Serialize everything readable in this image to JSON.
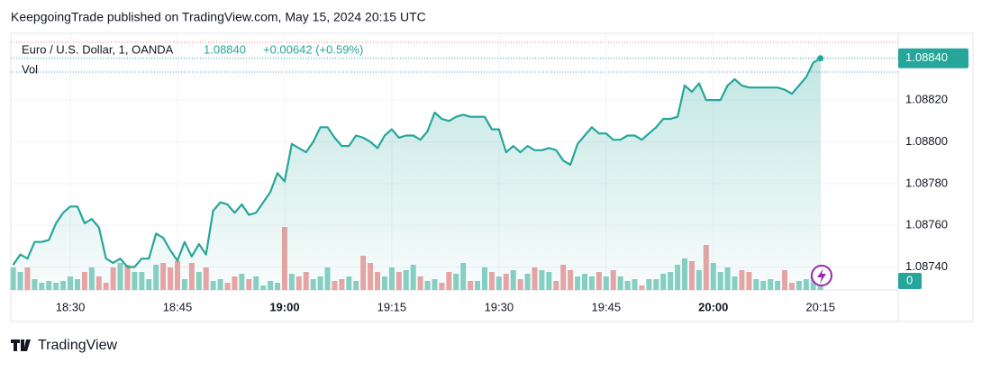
{
  "chart_data": {
    "type": "line",
    "title": "KeepgoingTrade published on TradingView.com, May 15, 2024 20:15 UTC",
    "legend_title": "Euro / U.S. Dollar, 1, OANDA",
    "last_price": {
      "value": 1.0884,
      "label": "1.08840"
    },
    "change": "+0.00642 (+0.59%)",
    "volume_title": "Vol",
    "volume_label": 0,
    "footer": "TradingView",
    "categories": [
      null,
      null,
      null,
      null,
      null,
      null,
      null,
      null,
      "18:30",
      null,
      null,
      null,
      null,
      null,
      null,
      null,
      null,
      null,
      null,
      null,
      null,
      null,
      null,
      "18:45",
      null,
      null,
      null,
      null,
      null,
      null,
      null,
      null,
      null,
      null,
      null,
      null,
      null,
      null,
      "19:00",
      null,
      null,
      null,
      null,
      null,
      null,
      null,
      null,
      null,
      null,
      null,
      null,
      null,
      null,
      "19:15",
      null,
      null,
      null,
      null,
      null,
      null,
      null,
      null,
      null,
      null,
      null,
      null,
      null,
      null,
      "19:30",
      null,
      null,
      null,
      null,
      null,
      null,
      null,
      null,
      null,
      null,
      null,
      null,
      null,
      null,
      "19:45",
      null,
      null,
      null,
      null,
      null,
      null,
      null,
      null,
      null,
      null,
      null,
      null,
      null,
      null,
      "20:00",
      null,
      null,
      null,
      null,
      null,
      null,
      null,
      null,
      null,
      null,
      null,
      null,
      null,
      null,
      "20:15"
    ],
    "series": [
      {
        "color": "#26a69a",
        "values": [
          1.08741,
          1.08746,
          1.08744,
          1.08752,
          1.08752,
          1.08753,
          1.08761,
          1.08766,
          1.08769,
          1.08769,
          1.08761,
          1.08763,
          1.08759,
          1.08744,
          1.08742,
          1.08744,
          1.0874,
          1.0874,
          1.08744,
          1.08744,
          1.08756,
          1.08754,
          1.08748,
          1.08743,
          1.08752,
          1.08745,
          1.08751,
          1.08746,
          1.08767,
          1.08771,
          1.0877,
          1.08766,
          1.0877,
          1.08765,
          1.08766,
          1.08771,
          1.08776,
          1.08785,
          1.08781,
          1.08799,
          1.08797,
          1.08795,
          1.088,
          1.08807,
          1.08807,
          1.08802,
          1.08798,
          1.08798,
          1.08803,
          1.08802,
          1.088,
          1.08797,
          1.08803,
          1.08806,
          1.08802,
          1.08803,
          1.08803,
          1.08801,
          1.08805,
          1.08814,
          1.08811,
          1.0881,
          1.08812,
          1.08813,
          1.08812,
          1.08812,
          1.08812,
          1.08806,
          1.08806,
          1.08795,
          1.08798,
          1.08795,
          1.08798,
          1.08796,
          1.08796,
          1.08797,
          1.08796,
          1.08791,
          1.08789,
          1.08799,
          1.08803,
          1.08807,
          1.08804,
          1.08804,
          1.08801,
          1.08801,
          1.08803,
          1.08803,
          1.08801,
          1.08804,
          1.08807,
          1.08811,
          1.08811,
          1.08812,
          1.08827,
          1.08824,
          1.08828,
          1.0882,
          1.0882,
          1.0882,
          1.08827,
          1.0883,
          1.08827,
          1.08826,
          1.08826,
          1.08826,
          1.08826,
          1.08826,
          1.08825,
          1.08823,
          1.08827,
          1.08831,
          1.08838,
          1.0884
        ]
      }
    ],
    "volume": {
      "up_color": "#89d0c4",
      "down_color": "#eda4a4",
      "values": [
        25,
        20,
        25,
        12,
        8,
        10,
        8,
        10,
        15,
        12,
        20,
        25,
        15,
        8,
        25,
        30,
        28,
        20,
        20,
        12,
        28,
        30,
        25,
        32,
        12,
        30,
        20,
        25,
        10,
        12,
        8,
        15,
        18,
        12,
        15,
        5,
        10,
        8,
        70,
        18,
        15,
        20,
        12,
        15,
        25,
        10,
        12,
        15,
        10,
        38,
        30,
        20,
        15,
        25,
        20,
        22,
        28,
        15,
        10,
        12,
        8,
        20,
        18,
        30,
        10,
        10,
        25,
        20,
        15,
        18,
        22,
        12,
        18,
        25,
        22,
        20,
        10,
        28,
        22,
        15,
        18,
        15,
        20,
        15,
        22,
        15,
        10,
        12,
        5,
        12,
        12,
        18,
        20,
        28,
        35,
        32,
        22,
        50,
        30,
        20,
        25,
        15,
        22,
        20,
        12,
        10,
        12,
        10,
        22,
        8,
        10,
        12,
        15,
        8
      ]
    },
    "ylim": [
      1.08729,
      1.08852
    ],
    "yticks": [
      {
        "value": 1.0874,
        "label": "1.08740"
      },
      {
        "value": 1.0876,
        "label": "1.08760"
      },
      {
        "value": 1.0878,
        "label": "1.08780"
      },
      {
        "value": 1.088,
        "label": "1.08800"
      },
      {
        "value": 1.0882,
        "label": "1.08820"
      }
    ],
    "grid": true
  }
}
